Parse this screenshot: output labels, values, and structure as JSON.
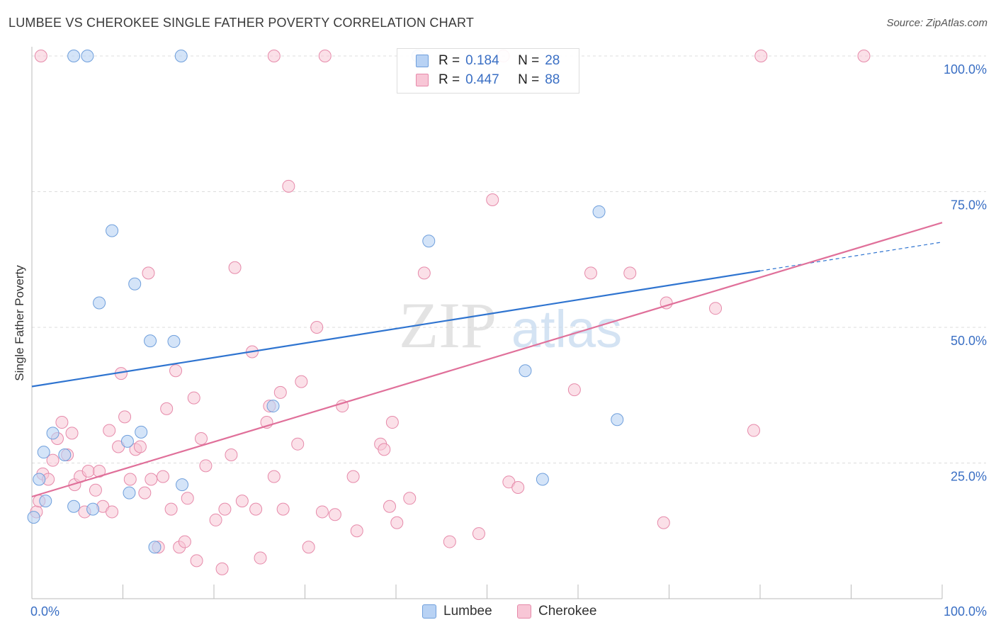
{
  "title": "LUMBEE VS CHEROKEE SINGLE FATHER POVERTY CORRELATION CHART",
  "source": "Source: ZipAtlas.com",
  "watermark": {
    "zip": "ZIP",
    "atlas": "atlas"
  },
  "legend": {
    "rows": [
      {
        "series": "Lumbee",
        "r_label": "R =",
        "r_value": "0.184",
        "n_label": "N =",
        "n_value": "28"
      },
      {
        "series": "Cherokee",
        "r_label": "R =",
        "r_value": "0.447",
        "n_label": "N =",
        "n_value": "88"
      }
    ]
  },
  "bottom_legend": [
    "Lumbee",
    "Cherokee"
  ],
  "colors": {
    "lumbee_fill": "#b8d2f4",
    "lumbee_stroke": "#6f9fdc",
    "lumbee_line": "#2f74d0",
    "cherokee_fill": "#f8c6d6",
    "cherokee_stroke": "#e68aaa",
    "cherokee_line": "#e0709a",
    "tick_label": "#3a6fc4"
  },
  "chart_data": {
    "type": "scatter",
    "title": "LUMBEE VS CHEROKEE SINGLE FATHER POVERTY CORRELATION CHART",
    "xlabel": "",
    "ylabel": "Single Father Poverty",
    "xlim": [
      0,
      100
    ],
    "ylim": [
      0,
      100
    ],
    "x_tick_labels": [
      "0.0%",
      "100.0%"
    ],
    "y_ticks": [
      25,
      50,
      75,
      100
    ],
    "y_tick_labels": [
      "25.0%",
      "50.0%",
      "75.0%",
      "100.0%"
    ],
    "grid": true,
    "legend_position": "top-center",
    "series": [
      {
        "name": "Lumbee",
        "r": 0.184,
        "n": 28,
        "trend": {
          "x0": 0,
          "y0": 39.1,
          "x1": 80,
          "y1": 60.4,
          "dash_to_x": 100,
          "dash_to_y": 65.7
        },
        "points": [
          [
            0.2,
            15
          ],
          [
            1.3,
            27
          ],
          [
            1.5,
            18
          ],
          [
            0.8,
            22
          ],
          [
            2.3,
            30.5
          ],
          [
            3.6,
            26.5
          ],
          [
            4.6,
            17
          ],
          [
            6.7,
            16.5
          ],
          [
            7.4,
            54.5
          ],
          [
            8.8,
            67.8
          ],
          [
            10.5,
            29
          ],
          [
            10.7,
            19.5
          ],
          [
            11.3,
            58
          ],
          [
            12,
            30.7
          ],
          [
            13,
            47.5
          ],
          [
            13.5,
            9.5
          ],
          [
            15.6,
            47.4
          ],
          [
            16.5,
            21
          ],
          [
            26.5,
            35.5
          ],
          [
            43.6,
            65.9
          ],
          [
            54.2,
            42
          ],
          [
            56.1,
            22
          ],
          [
            62.3,
            71.3
          ],
          [
            64.3,
            33
          ],
          [
            4.6,
            100
          ],
          [
            6.1,
            100
          ],
          [
            16.4,
            100
          ],
          [
            42.4,
            100
          ]
        ]
      },
      {
        "name": "Cherokee",
        "r": 0.447,
        "n": 88,
        "trend": {
          "x0": 0,
          "y0": 18.8,
          "x1": 100,
          "y1": 69.3
        },
        "points": [
          [
            0.5,
            16
          ],
          [
            0.8,
            18
          ],
          [
            1.2,
            23
          ],
          [
            1.8,
            22
          ],
          [
            2.3,
            25.5
          ],
          [
            2.8,
            29.5
          ],
          [
            3.3,
            32.5
          ],
          [
            3.9,
            26.5
          ],
          [
            4.4,
            30.5
          ],
          [
            4.7,
            21
          ],
          [
            5.3,
            22.5
          ],
          [
            5.8,
            16
          ],
          [
            6.2,
            23.5
          ],
          [
            7,
            20
          ],
          [
            7.4,
            23.5
          ],
          [
            7.8,
            17
          ],
          [
            8.5,
            31
          ],
          [
            8.8,
            16
          ],
          [
            9.5,
            28
          ],
          [
            9.8,
            41.5
          ],
          [
            10.2,
            33.5
          ],
          [
            10.8,
            22
          ],
          [
            11.4,
            27.5
          ],
          [
            11.9,
            28
          ],
          [
            12.4,
            19.5
          ],
          [
            12.8,
            60
          ],
          [
            13.1,
            22
          ],
          [
            13.9,
            9.5
          ],
          [
            14.4,
            22.5
          ],
          [
            14.8,
            35
          ],
          [
            15.3,
            16.5
          ],
          [
            15.8,
            42
          ],
          [
            16.2,
            9.5
          ],
          [
            16.8,
            10.5
          ],
          [
            17.1,
            18.5
          ],
          [
            17.8,
            37
          ],
          [
            18.1,
            7
          ],
          [
            18.6,
            29.5
          ],
          [
            19.1,
            24.5
          ],
          [
            20.2,
            14.5
          ],
          [
            20.9,
            5.5
          ],
          [
            21.2,
            16.5
          ],
          [
            21.9,
            26.5
          ],
          [
            22.3,
            61
          ],
          [
            23.1,
            18
          ],
          [
            24.2,
            45.5
          ],
          [
            24.6,
            16.5
          ],
          [
            25.1,
            7.5
          ],
          [
            25.8,
            32.5
          ],
          [
            26.1,
            35.5
          ],
          [
            26.6,
            22.5
          ],
          [
            27.3,
            38
          ],
          [
            27.6,
            16.5
          ],
          [
            28.2,
            76
          ],
          [
            29.2,
            28.5
          ],
          [
            29.6,
            40
          ],
          [
            30.4,
            9.5
          ],
          [
            31.3,
            50
          ],
          [
            31.9,
            16
          ],
          [
            33.3,
            15.5
          ],
          [
            34.1,
            35.5
          ],
          [
            35.3,
            22.5
          ],
          [
            35.7,
            12.5
          ],
          [
            38.3,
            28.5
          ],
          [
            38.7,
            27.5
          ],
          [
            39.3,
            17
          ],
          [
            39.6,
            32.5
          ],
          [
            40.1,
            14
          ],
          [
            41.5,
            18.5
          ],
          [
            43.1,
            60
          ],
          [
            45.9,
            10.5
          ],
          [
            49.1,
            12
          ],
          [
            50.6,
            73.5
          ],
          [
            52.4,
            21.5
          ],
          [
            53.4,
            20.5
          ],
          [
            59.6,
            38.5
          ],
          [
            61.4,
            60
          ],
          [
            65.7,
            60
          ],
          [
            69.4,
            14
          ],
          [
            69.7,
            54.5
          ],
          [
            75.1,
            53.5
          ],
          [
            79.3,
            31
          ],
          [
            1,
            100
          ],
          [
            26.6,
            100
          ],
          [
            32.2,
            100
          ],
          [
            51.8,
            100
          ],
          [
            80.1,
            100
          ],
          [
            91.4,
            100
          ]
        ]
      }
    ]
  }
}
